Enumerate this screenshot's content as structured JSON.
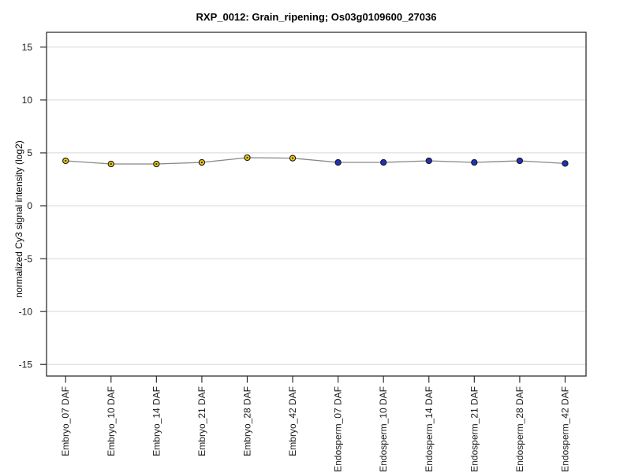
{
  "title": "RXP_0012: Grain_ripening; Os03g0109600_27036",
  "chart_data": {
    "type": "line",
    "title": "RXP_0012: Grain_ripening; Os03g0109600_27036",
    "xlabel": "",
    "ylabel": "normalized Cy3 signal intensity (log2)",
    "categories": [
      "Embryo_07 DAF",
      "Embryo_10 DAF",
      "Embryo_14 DAF",
      "Embryo_21 DAF",
      "Embryo_28 DAF",
      "Embryo_42 DAF",
      "Endosperm_07 DAF",
      "Endosperm_10 DAF",
      "Endosperm_14 DAF",
      "Endosperm_21 DAF",
      "Endosperm_28 DAF",
      "Endosperm_42 DAF"
    ],
    "values": [
      4.25,
      3.95,
      3.95,
      4.1,
      4.55,
      4.5,
      4.1,
      4.1,
      4.25,
      4.1,
      4.25,
      4.0
    ],
    "groups": [
      "embryo",
      "embryo",
      "embryo",
      "embryo",
      "embryo",
      "embryo",
      "endosperm",
      "endosperm",
      "endosperm",
      "endosperm",
      "endosperm",
      "endosperm"
    ],
    "group_colors": {
      "embryo": "#EDC90C",
      "endosperm": "#2130C0"
    },
    "marker_border_color": "#1a1a1a",
    "marker_center_dot_color": "#333333",
    "line_color": "#878787",
    "yticks": [
      15,
      10,
      5,
      0,
      -5,
      -10,
      -15
    ],
    "ylim": [
      -16.1,
      16.4
    ],
    "grid": true,
    "gridline_color": "#d8d8d8",
    "axis_color": "#303030",
    "tick_label_color": "#1a1a1a",
    "legend_position": "none"
  }
}
